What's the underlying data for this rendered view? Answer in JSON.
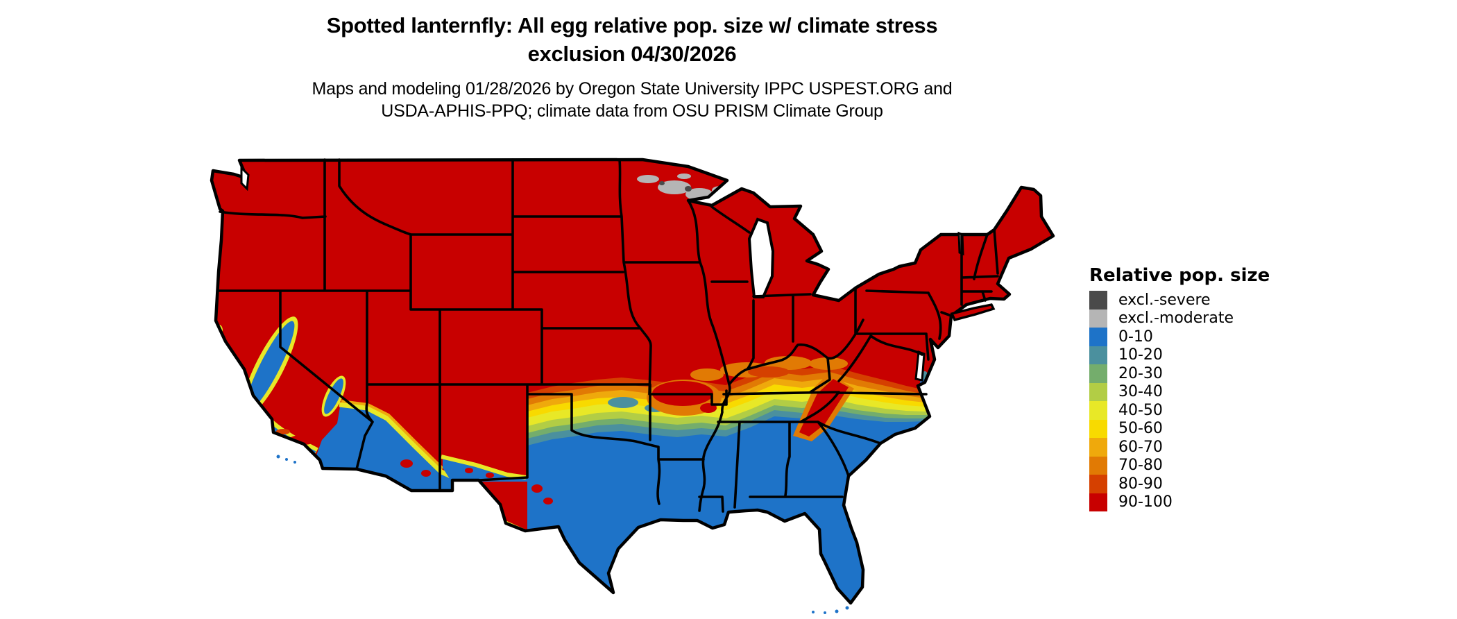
{
  "header": {
    "title_line1": "Spotted lanternfly: All egg relative pop. size w/ climate stress",
    "title_line2": "exclusion 04/30/2026",
    "subtitle_line1": "Maps and modeling 01/28/2026 by Oregon State University IPPC USPEST.ORG and",
    "subtitle_line2": "USDA-APHIS-PPQ; climate data from OSU PRISM Climate Group"
  },
  "legend": {
    "title": "Relative pop. size",
    "items": [
      {
        "label": "excl.-severe",
        "color_key": "excl_severe"
      },
      {
        "label": "excl.-moderate",
        "color_key": "excl_moderate"
      },
      {
        "label": "0-10",
        "color_key": "pop_0_10"
      },
      {
        "label": "10-20",
        "color_key": "pop_10_20"
      },
      {
        "label": "20-30",
        "color_key": "pop_20_30"
      },
      {
        "label": "30-40",
        "color_key": "pop_30_40"
      },
      {
        "label": "40-50",
        "color_key": "pop_40_50"
      },
      {
        "label": "50-60",
        "color_key": "pop_50_60"
      },
      {
        "label": "60-70",
        "color_key": "pop_60_70"
      },
      {
        "label": "70-80",
        "color_key": "pop_70_80"
      },
      {
        "label": "80-90",
        "color_key": "pop_80_90"
      },
      {
        "label": "90-100",
        "color_key": "pop_90_100"
      }
    ]
  },
  "colors": {
    "excl_severe": "#4a4a4a",
    "excl_moderate": "#b5b5b5",
    "pop_0_10": "#1e73c8",
    "pop_10_20": "#4b909e",
    "pop_20_30": "#74ad6c",
    "pop_30_40": "#b2cd45",
    "pop_40_50": "#e8e827",
    "pop_50_60": "#f8da00",
    "pop_60_70": "#efa90c",
    "pop_70_80": "#e17a04",
    "pop_80_90": "#d54000",
    "pop_90_100": "#c80000",
    "state_border": "#000000",
    "water_background": "#ffffff",
    "text": "#000000"
  }
}
